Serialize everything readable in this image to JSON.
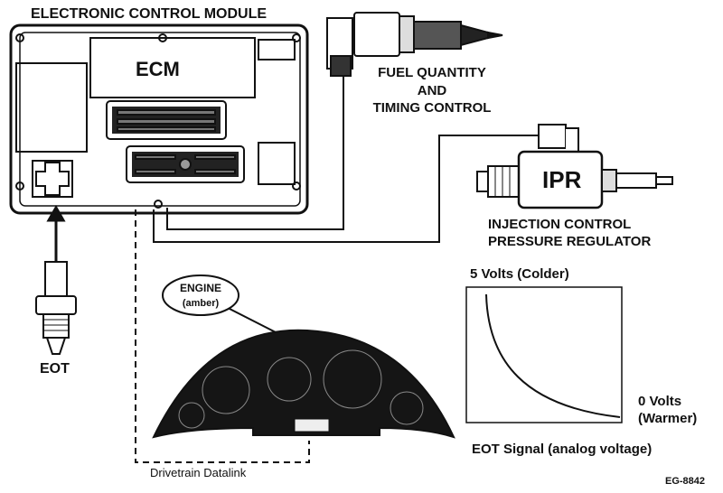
{
  "title": "ELECTRONIC CONTROL MODULE",
  "ecm_label": "ECM",
  "fuel_label": [
    "FUEL QUANTITY",
    "AND",
    "TIMING CONTROL"
  ],
  "ipr_label": "IPR",
  "ipr_caption": [
    "INJECTION CONTROL",
    "PRESSURE REGULATOR"
  ],
  "eot_label": "EOT",
  "engine_callout": {
    "title": "ENGINE",
    "subtitle": "(amber)"
  },
  "datalink_label": "Drivetrain Datalink",
  "graph": {
    "top_label": "5 Volts (Colder)",
    "bottom_label_line1": "0 Volts",
    "bottom_label_line2": "(Warmer)",
    "caption": "EOT Signal (analog voltage)"
  },
  "figure_code": "EG-8842",
  "colors": {
    "ink": "#111111",
    "cluster": "#151515"
  }
}
